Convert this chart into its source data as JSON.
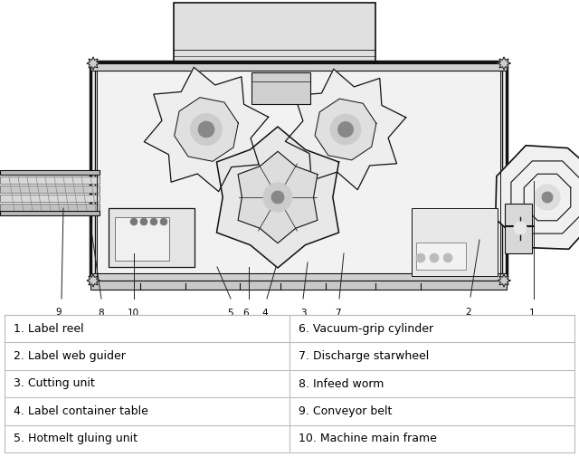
{
  "background_color": "#ffffff",
  "table_left": [
    "1. Label reel",
    "2. Label web guider",
    "3. Cutting unit",
    "4. Label container table",
    "5. Hotmelt gluing unit"
  ],
  "table_right": [
    "6. Vacuum-grip cylinder",
    "7. Discharge starwheel",
    "8. Infeed worm",
    "9. Conveyor belt",
    "10. Machine main frame"
  ],
  "table_line_color": "#bbbbbb",
  "table_text_color": "#000000",
  "table_font_size": 9.0,
  "diagram_bg": "#ffffff",
  "frame_color": "#111111",
  "part_color": "#333333",
  "light_fill": "#f5f5f5",
  "mid_fill": "#e0e0e0",
  "dark_fill": "#aaaaaa"
}
